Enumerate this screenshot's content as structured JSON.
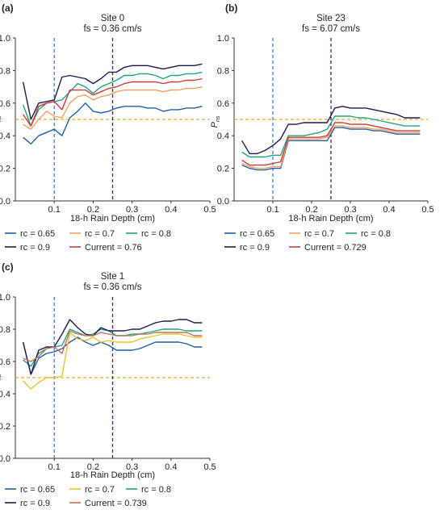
{
  "chart_data": [
    {
      "type": "line",
      "panel_label": "(a)",
      "title": "Site 0",
      "subtitle": "fs = 0.36 cm/s",
      "xlabel": "18-h Rain Depth (cm)",
      "ylabel_main": "P",
      "ylabel_sub": "ns",
      "xlim": [
        0,
        0.5
      ],
      "ylim": [
        0,
        1.0
      ],
      "xticks": [
        "0.1",
        "0.2",
        "0.3",
        "0.4",
        "0.5"
      ],
      "xtick_values": [
        0.1,
        0.2,
        0.3,
        0.4,
        0.5
      ],
      "yticks": [
        "0.0",
        "0.2",
        "0.4",
        "0.6",
        "0.8",
        "1.0"
      ],
      "ytick_values": [
        0,
        0.2,
        0.4,
        0.6,
        0.8,
        1.0
      ],
      "hline": {
        "y": 0.5,
        "color": "#f5a623"
      },
      "vlines": [
        {
          "x": 0.1,
          "color": "#4a78d4"
        },
        {
          "x": 0.25,
          "color": "#2d2a8c"
        }
      ],
      "x": [
        0.02,
        0.04,
        0.06,
        0.08,
        0.1,
        0.12,
        0.14,
        0.16,
        0.18,
        0.2,
        0.22,
        0.24,
        0.26,
        0.28,
        0.3,
        0.32,
        0.34,
        0.36,
        0.38,
        0.4,
        0.42,
        0.44,
        0.46,
        0.48
      ],
      "series": [
        {
          "name": "rc = 0.65",
          "color": "#1f5fa8",
          "values": [
            0.39,
            0.35,
            0.4,
            0.42,
            0.44,
            0.4,
            0.51,
            0.55,
            0.6,
            0.55,
            0.54,
            0.55,
            0.57,
            0.58,
            0.58,
            0.58,
            0.57,
            0.57,
            0.55,
            0.56,
            0.56,
            0.57,
            0.57,
            0.58
          ]
        },
        {
          "name": "rc = 0.7",
          "color": "#f5a060",
          "values": [
            0.47,
            0.44,
            0.5,
            0.55,
            0.52,
            0.51,
            0.6,
            0.64,
            0.65,
            0.62,
            0.64,
            0.65,
            0.67,
            0.68,
            0.68,
            0.68,
            0.68,
            0.68,
            0.67,
            0.68,
            0.68,
            0.69,
            0.69,
            0.7
          ]
        },
        {
          "name": "rc = 0.8",
          "color": "#1fa37a",
          "values": [
            0.59,
            0.46,
            0.56,
            0.6,
            0.61,
            0.62,
            0.67,
            0.72,
            0.7,
            0.66,
            0.7,
            0.72,
            0.74,
            0.77,
            0.77,
            0.78,
            0.78,
            0.77,
            0.75,
            0.77,
            0.77,
            0.78,
            0.78,
            0.79
          ]
        },
        {
          "name": "rc = 0.9",
          "color": "#1e1b4f",
          "values": [
            0.73,
            0.5,
            0.6,
            0.61,
            0.62,
            0.76,
            0.77,
            0.76,
            0.75,
            0.72,
            0.75,
            0.79,
            0.79,
            0.82,
            0.83,
            0.83,
            0.83,
            0.82,
            0.81,
            0.82,
            0.83,
            0.83,
            0.83,
            0.84
          ]
        },
        {
          "name": "Current = 0.76",
          "color": "#c93a3a",
          "values": [
            0.53,
            0.46,
            0.58,
            0.6,
            0.61,
            0.56,
            0.68,
            0.68,
            0.68,
            0.65,
            0.67,
            0.69,
            0.7,
            0.72,
            0.73,
            0.73,
            0.73,
            0.73,
            0.72,
            0.73,
            0.73,
            0.74,
            0.74,
            0.75
          ]
        }
      ]
    },
    {
      "type": "line",
      "panel_label": "(b)",
      "title": "Site 23",
      "subtitle": "fs = 6.07 cm/s",
      "xlabel": "18-h Rain Depth (cm)",
      "ylabel_main": "P",
      "ylabel_sub": "ns",
      "xlim": [
        0,
        0.5
      ],
      "ylim": [
        0,
        1.0
      ],
      "xticks": [
        "0.1",
        "0.2",
        "0.3",
        "0.4",
        "0.5"
      ],
      "xtick_values": [
        0.1,
        0.2,
        0.3,
        0.4,
        0.5
      ],
      "yticks": [
        "0.0",
        "0.2",
        "0.4",
        "0.6",
        "0.8",
        "1.0"
      ],
      "ytick_values": [
        0,
        0.2,
        0.4,
        0.6,
        0.8,
        1.0
      ],
      "hline": {
        "y": 0.5,
        "color": "#f5a623"
      },
      "vlines": [
        {
          "x": 0.1,
          "color": "#4a78d4"
        },
        {
          "x": 0.25,
          "color": "#2d2a8c"
        }
      ],
      "x": [
        0.02,
        0.04,
        0.06,
        0.08,
        0.1,
        0.12,
        0.14,
        0.16,
        0.18,
        0.2,
        0.22,
        0.24,
        0.26,
        0.28,
        0.3,
        0.32,
        0.34,
        0.36,
        0.38,
        0.4,
        0.42,
        0.44,
        0.46,
        0.48
      ],
      "series": [
        {
          "name": "rc = 0.65",
          "color": "#1f5fa8",
          "values": [
            0.22,
            0.2,
            0.19,
            0.19,
            0.2,
            0.2,
            0.37,
            0.37,
            0.37,
            0.37,
            0.37,
            0.37,
            0.45,
            0.45,
            0.44,
            0.44,
            0.44,
            0.43,
            0.43,
            0.42,
            0.41,
            0.41,
            0.41,
            0.41
          ]
        },
        {
          "name": "rc = 0.7",
          "color": "#f5a060",
          "values": [
            0.23,
            0.21,
            0.2,
            0.2,
            0.21,
            0.21,
            0.38,
            0.38,
            0.38,
            0.38,
            0.38,
            0.39,
            0.46,
            0.46,
            0.45,
            0.45,
            0.45,
            0.44,
            0.44,
            0.43,
            0.42,
            0.42,
            0.42,
            0.42
          ]
        },
        {
          "name": "rc = 0.8",
          "color": "#1fa37a",
          "values": [
            0.3,
            0.27,
            0.27,
            0.27,
            0.28,
            0.28,
            0.4,
            0.4,
            0.4,
            0.41,
            0.42,
            0.44,
            0.52,
            0.52,
            0.52,
            0.51,
            0.51,
            0.5,
            0.49,
            0.48,
            0.47,
            0.46,
            0.46,
            0.46
          ]
        },
        {
          "name": "rc = 0.9",
          "color": "#1e1b4f",
          "values": [
            0.37,
            0.29,
            0.29,
            0.31,
            0.34,
            0.38,
            0.47,
            0.47,
            0.48,
            0.48,
            0.48,
            0.48,
            0.57,
            0.58,
            0.57,
            0.57,
            0.57,
            0.56,
            0.55,
            0.54,
            0.53,
            0.51,
            0.51,
            0.51
          ]
        },
        {
          "name": "Current = 0.729",
          "color": "#c93a3a",
          "values": [
            0.25,
            0.22,
            0.22,
            0.22,
            0.23,
            0.24,
            0.39,
            0.39,
            0.39,
            0.39,
            0.39,
            0.4,
            0.48,
            0.48,
            0.47,
            0.47,
            0.47,
            0.46,
            0.45,
            0.44,
            0.43,
            0.43,
            0.43,
            0.43
          ]
        }
      ]
    },
    {
      "type": "line",
      "panel_label": "(c)",
      "title": "Site 1",
      "subtitle": "fs = 0.36 cm/s",
      "xlabel": "18-h Rain Depth (cm)",
      "ylabel_main": "P",
      "ylabel_sub": "ns",
      "xlim": [
        0,
        0.5
      ],
      "ylim": [
        0,
        1.0
      ],
      "xticks": [
        "0.1",
        "0.2",
        "0.3",
        "0.4",
        "0.5"
      ],
      "xtick_values": [
        0.1,
        0.2,
        0.3,
        0.4,
        0.5
      ],
      "yticks": [
        "0.0",
        "0.2",
        "0.4",
        "0.6",
        "0.8",
        "1.0"
      ],
      "ytick_values": [
        0,
        0.2,
        0.4,
        0.6,
        0.8,
        1.0
      ],
      "hline": {
        "y": 0.5,
        "color": "#f5a623"
      },
      "vlines": [
        {
          "x": 0.1,
          "color": "#4a78d4"
        },
        {
          "x": 0.25,
          "color": "#2d2a8c"
        }
      ],
      "x": [
        0.02,
        0.04,
        0.06,
        0.08,
        0.1,
        0.12,
        0.14,
        0.16,
        0.18,
        0.2,
        0.22,
        0.24,
        0.26,
        0.28,
        0.3,
        0.32,
        0.34,
        0.36,
        0.38,
        0.4,
        0.42,
        0.44,
        0.46,
        0.48
      ],
      "series": [
        {
          "name": "rc = 0.65",
          "color": "#1f5fa8",
          "values": [
            0.72,
            0.52,
            0.62,
            0.65,
            0.66,
            0.68,
            0.72,
            0.75,
            0.72,
            0.7,
            0.72,
            0.7,
            0.67,
            0.67,
            0.67,
            0.68,
            0.7,
            0.72,
            0.72,
            0.72,
            0.72,
            0.71,
            0.69,
            0.69
          ]
        },
        {
          "name": "rc = 0.7",
          "color": "#e8c230",
          "values": [
            0.48,
            0.43,
            0.47,
            0.5,
            0.5,
            0.51,
            0.78,
            0.74,
            0.73,
            0.75,
            0.72,
            0.73,
            0.72,
            0.72,
            0.72,
            0.74,
            0.75,
            0.76,
            0.77,
            0.77,
            0.77,
            0.76,
            0.75,
            0.75
          ]
        },
        {
          "name": "rc = 0.8",
          "color": "#1fa37a",
          "values": [
            0.61,
            0.57,
            0.65,
            0.68,
            0.69,
            0.7,
            0.8,
            0.78,
            0.76,
            0.77,
            0.8,
            0.79,
            0.76,
            0.76,
            0.77,
            0.77,
            0.78,
            0.79,
            0.8,
            0.8,
            0.8,
            0.79,
            0.79,
            0.79
          ]
        },
        {
          "name": "rc = 0.9",
          "color": "#1e1b4f",
          "values": [
            0.72,
            0.52,
            0.67,
            0.69,
            0.69,
            0.77,
            0.86,
            0.81,
            0.77,
            0.76,
            0.81,
            0.79,
            0.79,
            0.79,
            0.8,
            0.8,
            0.82,
            0.84,
            0.85,
            0.85,
            0.86,
            0.86,
            0.84,
            0.84
          ]
        },
        {
          "name": "Current = 0.739",
          "color": "#c2705a",
          "values": [
            0.62,
            0.6,
            0.63,
            0.68,
            0.69,
            0.65,
            0.79,
            0.77,
            0.76,
            0.76,
            0.78,
            0.77,
            0.76,
            0.76,
            0.76,
            0.77,
            0.77,
            0.78,
            0.78,
            0.78,
            0.78,
            0.78,
            0.76,
            0.76
          ]
        }
      ]
    }
  ]
}
